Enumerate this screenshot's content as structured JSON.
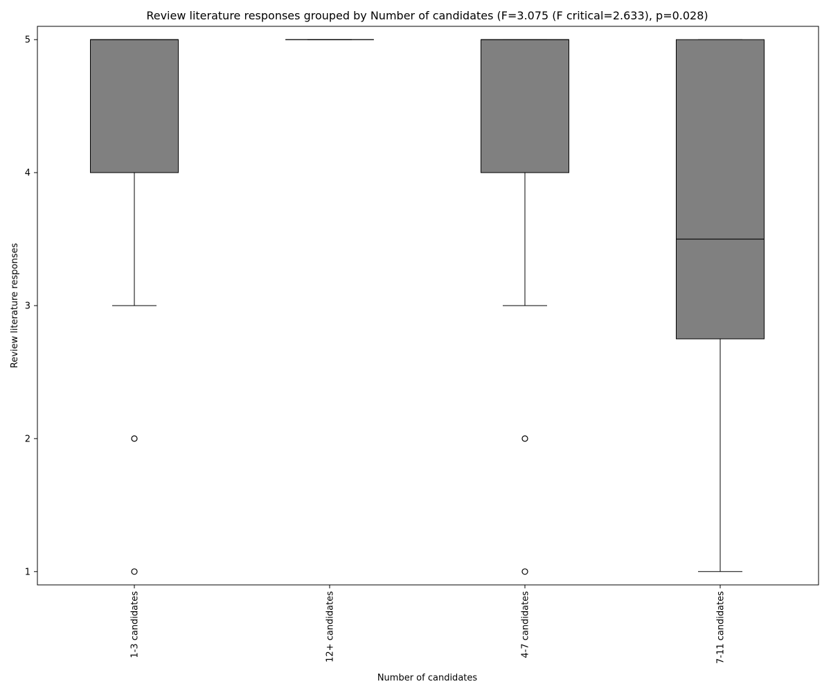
{
  "chart_data": {
    "type": "box",
    "title": "Review literature responses grouped by Number of candidates (F=3.075 (F critical=2.633), p=0.028)",
    "xlabel": "Number of candidates",
    "ylabel": "Review literature responses",
    "ylim": [
      0.9,
      5.1
    ],
    "yticks": [
      1,
      2,
      3,
      4,
      5
    ],
    "grid": false,
    "legend": "none",
    "box_color": "#808080",
    "categories": [
      "1-3 candidates",
      "12+ candidates",
      "4-7 candidates",
      "7-11 candidates"
    ],
    "boxes": [
      {
        "q1": 4,
        "median": 5,
        "q3": 5,
        "whisker_low": 3,
        "whisker_high": 5,
        "outliers": [
          2,
          1
        ]
      },
      {
        "q1": 5,
        "median": 5,
        "q3": 5,
        "whisker_low": 5,
        "whisker_high": 5,
        "outliers": []
      },
      {
        "q1": 4,
        "median": 5,
        "q3": 5,
        "whisker_low": 3,
        "whisker_high": 5,
        "outliers": [
          2,
          1
        ]
      },
      {
        "q1": 2.75,
        "median": 3.5,
        "q3": 5,
        "whisker_low": 1,
        "whisker_high": 5,
        "outliers": []
      }
    ]
  }
}
